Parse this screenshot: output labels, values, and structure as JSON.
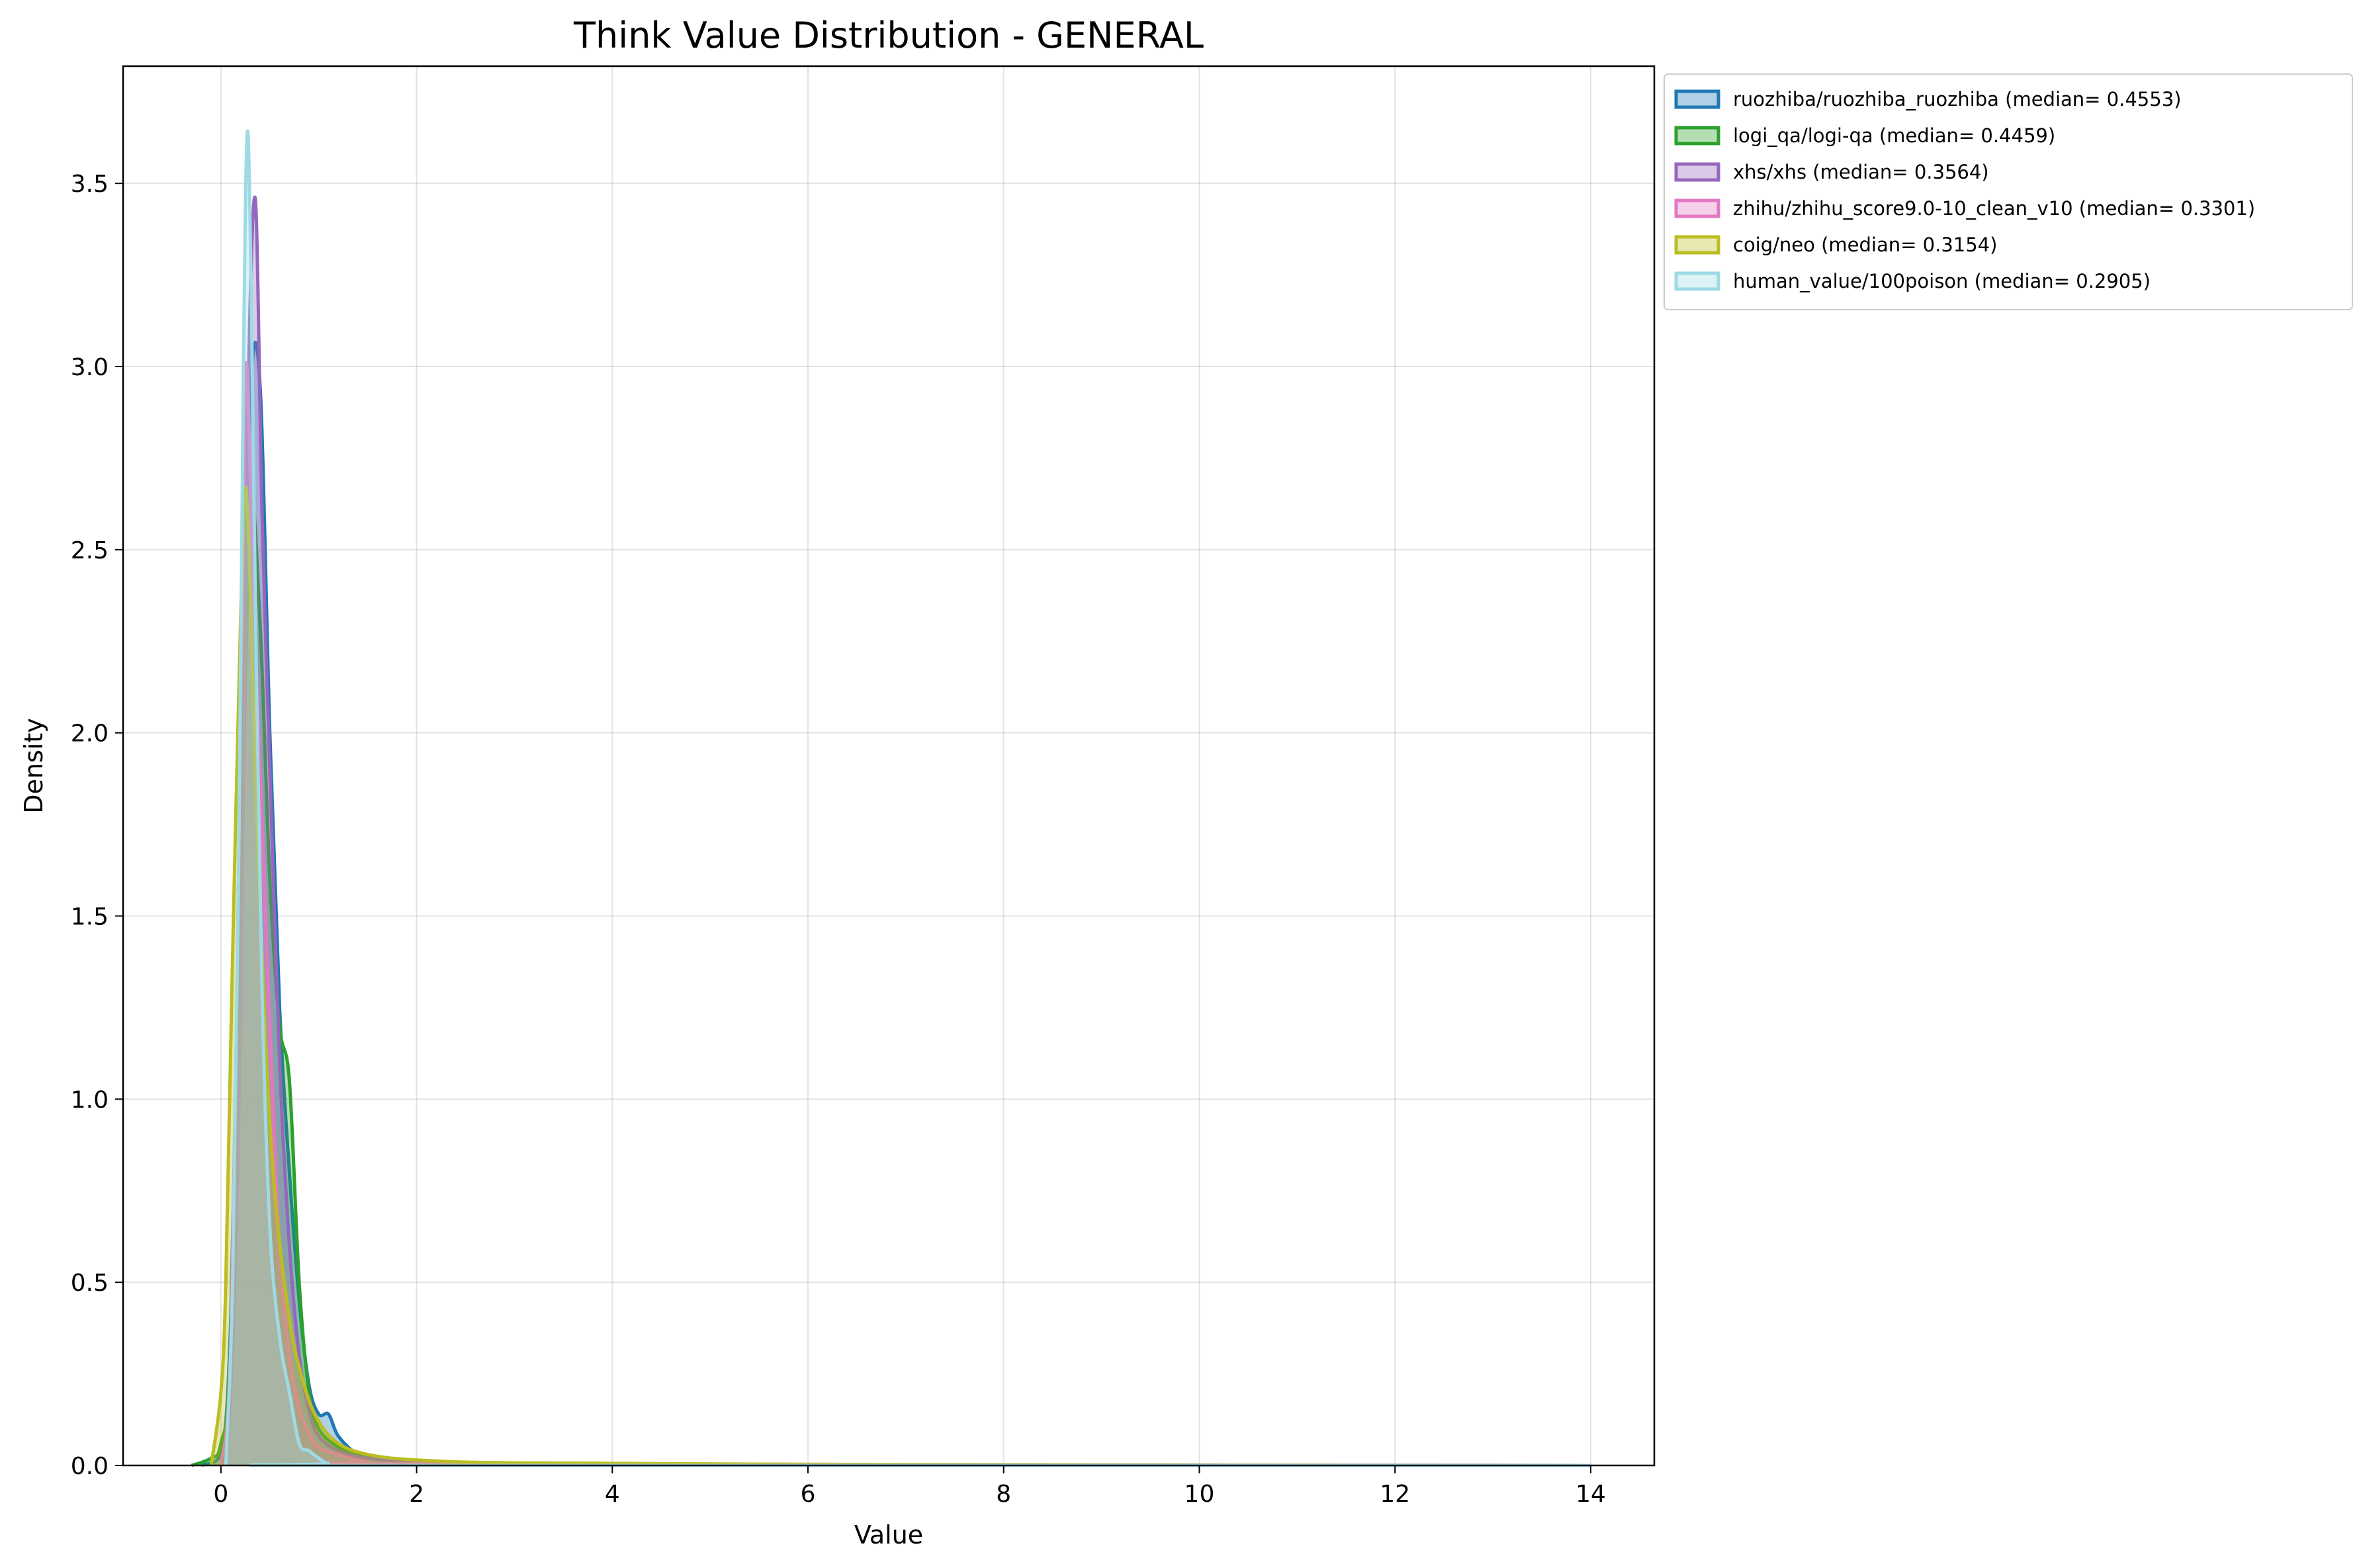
{
  "chart_data": {
    "type": "area",
    "title": "Think Value Distribution - GENERAL",
    "xlabel": "Value",
    "ylabel": "Density",
    "xlim": [
      -1.0,
      14.65
    ],
    "ylim": [
      0,
      3.82
    ],
    "xticks": [
      0,
      2,
      4,
      6,
      8,
      10,
      12,
      14
    ],
    "yticks": [
      0.0,
      0.5,
      1.0,
      1.5,
      2.0,
      2.5,
      3.0,
      3.5
    ],
    "grid": true,
    "legend_position": "outside-top-right",
    "series": [
      {
        "name": "ruozhiba/ruozhiba_ruozhiba (median= 0.4553)",
        "color": "#1f77b4",
        "points": [
          [
            -0.2,
            0
          ],
          [
            0.0,
            0.03
          ],
          [
            0.1,
            0.4
          ],
          [
            0.2,
            1.6
          ],
          [
            0.3,
            2.9
          ],
          [
            0.4,
            2.95
          ],
          [
            0.5,
            2.0
          ],
          [
            0.6,
            1.25
          ],
          [
            0.7,
            0.8
          ],
          [
            0.8,
            0.45
          ],
          [
            0.9,
            0.22
          ],
          [
            1.0,
            0.14
          ],
          [
            1.1,
            0.14
          ],
          [
            1.2,
            0.08
          ],
          [
            1.4,
            0.03
          ],
          [
            1.6,
            0.02
          ],
          [
            1.8,
            0.015
          ],
          [
            2.5,
            0.005
          ],
          [
            4,
            0.002
          ],
          [
            14,
            0
          ]
        ]
      },
      {
        "name": "logi_qa/logi-qa (median= 0.4459)",
        "color": "#2ca02c",
        "points": [
          [
            -0.3,
            0
          ],
          [
            -0.1,
            0.02
          ],
          [
            0.0,
            0.06
          ],
          [
            0.1,
            0.3
          ],
          [
            0.2,
            1.5
          ],
          [
            0.3,
            2.6
          ],
          [
            0.4,
            2.3
          ],
          [
            0.5,
            1.6
          ],
          [
            0.6,
            1.2
          ],
          [
            0.7,
            1.05
          ],
          [
            0.8,
            0.5
          ],
          [
            0.9,
            0.2
          ],
          [
            1.0,
            0.1
          ],
          [
            1.2,
            0.05
          ],
          [
            1.4,
            0.03
          ],
          [
            1.6,
            0.02
          ],
          [
            2.0,
            0.01
          ],
          [
            3.0,
            0.003
          ],
          [
            6,
            0.001
          ],
          [
            14,
            0
          ]
        ]
      },
      {
        "name": "xhs/xhs (median= 0.3564)",
        "color": "#9467bd",
        "points": [
          [
            0.0,
            0
          ],
          [
            0.1,
            0.2
          ],
          [
            0.2,
            1.2
          ],
          [
            0.27,
            2.8
          ],
          [
            0.35,
            3.46
          ],
          [
            0.42,
            2.6
          ],
          [
            0.5,
            1.9
          ],
          [
            0.6,
            1.1
          ],
          [
            0.7,
            0.6
          ],
          [
            0.8,
            0.3
          ],
          [
            0.9,
            0.15
          ],
          [
            1.0,
            0.08
          ],
          [
            1.2,
            0.04
          ],
          [
            1.5,
            0.02
          ],
          [
            2.0,
            0.01
          ],
          [
            3.0,
            0.002
          ],
          [
            14,
            0
          ]
        ]
      },
      {
        "name": "zhihu/zhihu_score9.0-10_clean_v10 (median= 0.3301)",
        "color": "#e377c2",
        "points": [
          [
            0.0,
            0
          ],
          [
            0.1,
            0.3
          ],
          [
            0.18,
            1.6
          ],
          [
            0.25,
            2.98
          ],
          [
            0.32,
            2.5
          ],
          [
            0.4,
            1.9
          ],
          [
            0.5,
            1.2
          ],
          [
            0.6,
            0.6
          ],
          [
            0.7,
            0.3
          ],
          [
            0.8,
            0.16
          ],
          [
            0.9,
            0.09
          ],
          [
            1.0,
            0.05
          ],
          [
            1.2,
            0.03
          ],
          [
            1.5,
            0.01
          ],
          [
            2.0,
            0.005
          ],
          [
            14,
            0
          ]
        ]
      },
      {
        "name": "coig/neo (median= 0.3154)",
        "color": "#bcbd22",
        "points": [
          [
            -0.1,
            0
          ],
          [
            0.0,
            0.2
          ],
          [
            0.05,
            0.5
          ],
          [
            0.12,
            1.4
          ],
          [
            0.2,
            2.3
          ],
          [
            0.25,
            2.67
          ],
          [
            0.3,
            2.4
          ],
          [
            0.35,
            1.9
          ],
          [
            0.45,
            1.2
          ],
          [
            0.55,
            0.75
          ],
          [
            0.7,
            0.4
          ],
          [
            0.85,
            0.22
          ],
          [
            1.0,
            0.12
          ],
          [
            1.2,
            0.06
          ],
          [
            1.5,
            0.03
          ],
          [
            2.0,
            0.015
          ],
          [
            3,
            0.007
          ],
          [
            6,
            0.003
          ],
          [
            10,
            0.001
          ],
          [
            14,
            0
          ]
        ]
      },
      {
        "name": "human_value/100poison (median= 0.2905)",
        "color": "#9edae5",
        "points": [
          [
            0.05,
            0
          ],
          [
            0.12,
            0.5
          ],
          [
            0.18,
            1.6
          ],
          [
            0.23,
            3.0
          ],
          [
            0.27,
            3.64
          ],
          [
            0.31,
            3.2
          ],
          [
            0.36,
            2.2
          ],
          [
            0.42,
            1.3
          ],
          [
            0.5,
            0.65
          ],
          [
            0.6,
            0.35
          ],
          [
            0.7,
            0.2
          ],
          [
            0.8,
            0.06
          ],
          [
            0.9,
            0.04
          ],
          [
            1.0,
            0.02
          ],
          [
            1.1,
            0.005
          ],
          [
            1.3,
            0
          ],
          [
            14,
            0
          ]
        ]
      }
    ]
  }
}
